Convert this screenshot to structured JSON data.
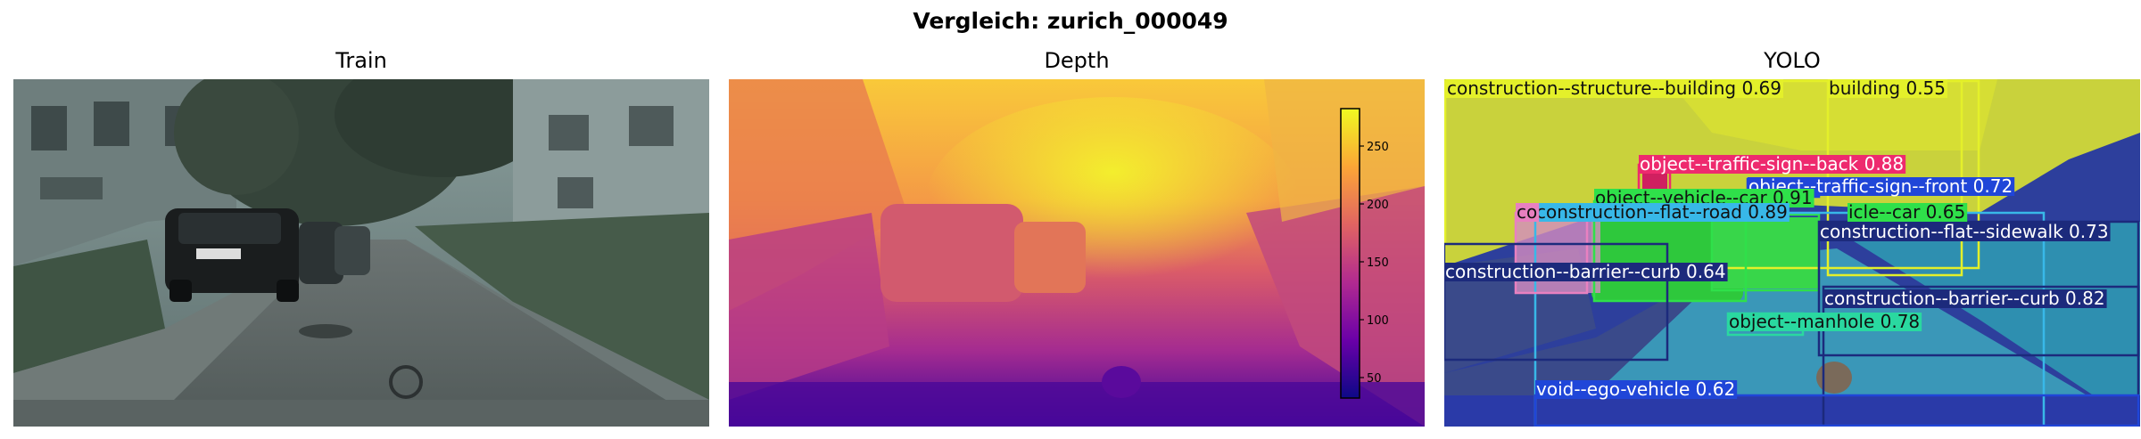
{
  "figure": {
    "title": "Vergleich: zurich_000049"
  },
  "panels": {
    "train": {
      "title": "Train"
    },
    "depth": {
      "title": "Depth",
      "colorbar": {
        "ticks": [
          "250",
          "200",
          "150",
          "100",
          "50"
        ],
        "range": [
          30,
          280
        ],
        "colormap": "plasma"
      }
    },
    "yolo": {
      "title": "YOLO"
    }
  },
  "detections": [
    {
      "label": "construction--structure--building 0.69",
      "color": "#e4f02a",
      "dark": true
    },
    {
      "label": "building 0.55",
      "color": "#e4f02a",
      "dark": true
    },
    {
      "label": "object--traffic-sign--back 0.88",
      "color": "#ee2a6e",
      "dark": false
    },
    {
      "label": "object--traffic-sign--front 0.72",
      "color": "#2046d8",
      "dark": false
    },
    {
      "label": "object--vehicle--car 0.91",
      "color": "#2fe04a",
      "dark": true
    },
    {
      "label": "construction--flat--road 0.89",
      "color": "#38b8e8",
      "dark": true
    },
    {
      "label": "icle--car 0.65",
      "color": "#2fe04a",
      "dark": true
    },
    {
      "label": "co",
      "color": "#e880c0",
      "dark": true
    },
    {
      "label": "construction--flat--sidewalk 0.73",
      "color": "#1c2a7c",
      "dark": false
    },
    {
      "label": "construction--barrier--curb 0.64",
      "color": "#1c2a7c",
      "dark": false
    },
    {
      "label": "construction--barrier--curb 0.82",
      "color": "#1c2a7c",
      "dark": false
    },
    {
      "label": "object--manhole 0.78",
      "color": "#2ad8a0",
      "dark": true
    },
    {
      "label": "void--ego-vehicle 0.62",
      "color": "#2046d8",
      "dark": false
    }
  ]
}
